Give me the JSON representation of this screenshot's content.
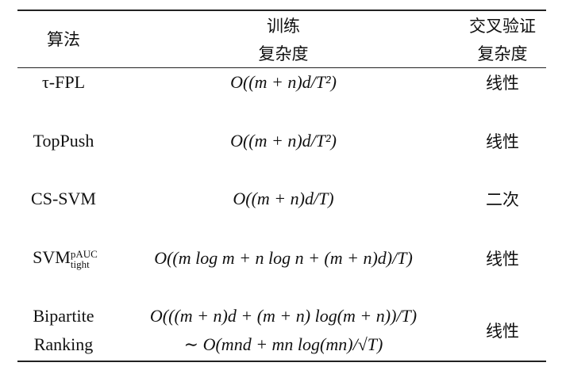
{
  "headers": {
    "algorithm": "算法",
    "training_line1": "训练",
    "training_line2": "复杂度",
    "cv_line1": "交叉验证",
    "cv_line2": "复杂度"
  },
  "rows": [
    {
      "algorithm": "τ-FPL",
      "training": "O((m + n)d/T²)",
      "cv": "线性"
    },
    {
      "algorithm": "TopPush",
      "training": "O((m + n)d/T²)",
      "cv": "线性"
    },
    {
      "algorithm": "CS-SVM",
      "training": "O((m + n)d/T)",
      "cv": "二次"
    },
    {
      "algorithm": "SVM",
      "algorithm_sup": "pAUC",
      "algorithm_sub": "tight",
      "training": "O((m log m + n log n + (m + n)d)/T)",
      "cv": "线性"
    },
    {
      "algorithm_line1": "Bipartite",
      "algorithm_line2": "Ranking",
      "training_line1": "O(((m + n)d + (m + n) log(m + n))/T)",
      "training_line2": "∼ O(mnd + mn log(mn)/√T)",
      "cv": "线性"
    }
  ]
}
